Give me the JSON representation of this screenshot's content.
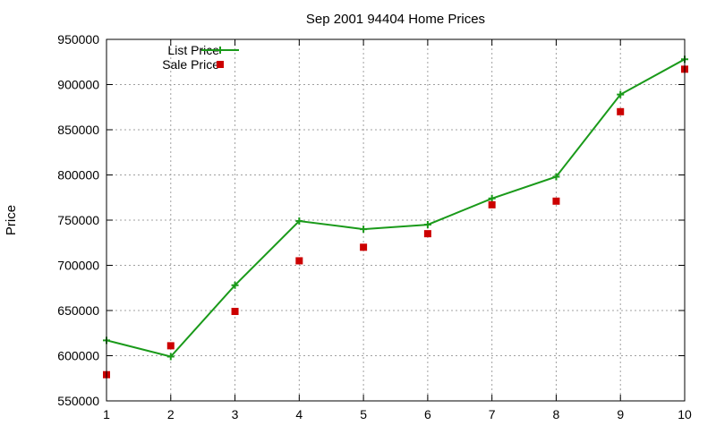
{
  "chart_data": {
    "type": "line",
    "title": "Sep 2001 94404 Home Prices",
    "xlabel": "",
    "ylabel": "Price",
    "xlim": [
      1,
      10
    ],
    "ylim": [
      550000,
      950000
    ],
    "x_ticks": [
      "1",
      "2",
      "3",
      "4",
      "5",
      "6",
      "7",
      "8",
      "9",
      "10"
    ],
    "y_ticks": [
      "550000",
      "600000",
      "650000",
      "700000",
      "750000",
      "800000",
      "850000",
      "900000",
      "950000"
    ],
    "grid": true,
    "legend_position": "top-left",
    "series": [
      {
        "name": "List Price",
        "style": "line-with-plus-markers",
        "color": "#1a9a1a",
        "x": [
          1,
          2,
          3,
          4,
          5,
          6,
          7,
          8,
          9,
          10
        ],
        "values": [
          617000,
          599000,
          678000,
          749000,
          740000,
          745000,
          774000,
          798000,
          889000,
          928000
        ]
      },
      {
        "name": "Sale Price",
        "style": "square-points",
        "color": "#cc0000",
        "x": [
          1,
          2,
          3,
          4,
          5,
          6,
          7,
          8,
          9,
          10
        ],
        "values": [
          579000,
          611000,
          649000,
          705000,
          720000,
          735000,
          767000,
          771000,
          870000,
          917000
        ]
      }
    ]
  }
}
